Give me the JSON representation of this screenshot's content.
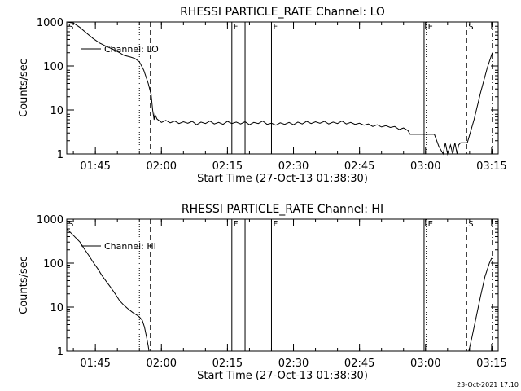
{
  "footer": {
    "timestamp": "23-Oct-2021 17:10"
  },
  "chart_data": [
    {
      "type": "line",
      "title": "RHESSI PARTICLE_RATE Channel: LO",
      "xlabel": "Start Time (27-Oct-13 01:38:30)",
      "ylabel": "Counts/sec",
      "y_scale": "log",
      "ylim": [
        1,
        1000
      ],
      "xlim": [
        "01:38:30",
        "03:16:30"
      ],
      "x_ticks": [
        "01:45",
        "02:00",
        "02:15",
        "02:30",
        "02:45",
        "03:00",
        "03:15"
      ],
      "y_ticks": [
        "1",
        "10",
        "100",
        "1000"
      ],
      "legend": {
        "placement": "top-left",
        "entries": [
          "Channel: LO"
        ]
      },
      "grid": false,
      "series": [
        {
          "name": "Channel: LO",
          "points": [
            [
              "01:38:30",
              1000
            ],
            [
              "01:40:00",
              950
            ],
            [
              "01:41:30",
              750
            ],
            [
              "01:43:00",
              560
            ],
            [
              "01:44:30",
              420
            ],
            [
              "01:46:00",
              330
            ],
            [
              "01:47:30",
              280
            ],
            [
              "01:49:00",
              240
            ],
            [
              "01:50:30",
              200
            ],
            [
              "01:51:30",
              175
            ],
            [
              "01:53:00",
              160
            ],
            [
              "01:54:00",
              148
            ],
            [
              "01:55:00",
              125
            ],
            [
              "01:56:00",
              80
            ],
            [
              "01:57:00",
              40
            ],
            [
              "01:57:40",
              22
            ],
            [
              "01:58:00",
              10
            ],
            [
              "01:58:20",
              6
            ],
            [
              "01:58:30",
              8
            ],
            [
              "01:59:00",
              6.2
            ],
            [
              "02:00:00",
              5.2
            ],
            [
              "02:01:00",
              5.8
            ],
            [
              "02:02:00",
              5.1
            ],
            [
              "02:03:00",
              5.6
            ],
            [
              "02:04:00",
              4.9
            ],
            [
              "02:05:00",
              5.4
            ],
            [
              "02:06:00",
              5.0
            ],
            [
              "02:07:00",
              5.5
            ],
            [
              "02:08:00",
              4.6
            ],
            [
              "02:09:00",
              5.3
            ],
            [
              "02:10:00",
              4.9
            ],
            [
              "02:11:00",
              5.6
            ],
            [
              "02:12:00",
              4.8
            ],
            [
              "02:13:00",
              5.2
            ],
            [
              "02:14:00",
              4.7
            ],
            [
              "02:15:00",
              5.5
            ],
            [
              "02:16:00",
              4.9
            ],
            [
              "02:17:00",
              5.3
            ],
            [
              "02:18:00",
              4.8
            ],
            [
              "02:19:00",
              5.4
            ],
            [
              "02:20:00",
              4.6
            ],
            [
              "02:21:00",
              5.2
            ],
            [
              "02:22:00",
              4.9
            ],
            [
              "02:23:00",
              5.6
            ],
            [
              "02:24:00",
              4.7
            ],
            [
              "02:25:00",
              5.0
            ],
            [
              "02:26:00",
              4.5
            ],
            [
              "02:27:00",
              5.1
            ],
            [
              "02:28:00",
              4.7
            ],
            [
              "02:29:00",
              5.2
            ],
            [
              "02:30:00",
              4.6
            ],
            [
              "02:31:00",
              5.3
            ],
            [
              "02:32:00",
              4.8
            ],
            [
              "02:33:00",
              5.5
            ],
            [
              "02:34:00",
              4.9
            ],
            [
              "02:35:00",
              5.4
            ],
            [
              "02:36:00",
              5.0
            ],
            [
              "02:37:00",
              5.5
            ],
            [
              "02:38:00",
              4.8
            ],
            [
              "02:39:00",
              5.3
            ],
            [
              "02:40:00",
              4.9
            ],
            [
              "02:41:00",
              5.6
            ],
            [
              "02:42:00",
              4.8
            ],
            [
              "02:43:00",
              5.2
            ],
            [
              "02:44:00",
              4.7
            ],
            [
              "02:45:00",
              5.0
            ],
            [
              "02:46:00",
              4.5
            ],
            [
              "02:47:00",
              4.8
            ],
            [
              "02:48:00",
              4.2
            ],
            [
              "02:49:00",
              4.6
            ],
            [
              "02:50:00",
              4.1
            ],
            [
              "02:51:00",
              4.4
            ],
            [
              "02:52:00",
              4.0
            ],
            [
              "02:53:00",
              4.2
            ],
            [
              "02:54:00",
              3.6
            ],
            [
              "02:55:00",
              3.9
            ],
            [
              "02:56:00",
              3.4
            ],
            [
              "02:56:30",
              2.8
            ],
            [
              "02:58:00",
              2.8
            ],
            [
              "03:00:00",
              2.8
            ],
            [
              "03:02:00",
              2.8
            ],
            [
              "03:03:00",
              1.5
            ],
            [
              "03:04:00",
              1.0
            ],
            [
              "03:04:30",
              1.8
            ],
            [
              "03:05:00",
              1.0
            ],
            [
              "03:05:40",
              1.6
            ],
            [
              "03:06:10",
              1.0
            ],
            [
              "03:06:40",
              1.8
            ],
            [
              "03:07:10",
              1.0
            ],
            [
              "03:07:30",
              1.6
            ],
            [
              "03:08:00",
              1.8
            ],
            [
              "03:09:30",
              1.8
            ],
            [
              "03:11:00",
              6
            ],
            [
              "03:12:30",
              25
            ],
            [
              "03:14:00",
              90
            ],
            [
              "03:15:10",
              200
            ]
          ]
        }
      ],
      "markers": [
        {
          "label": "S",
          "time": "01:38:30",
          "style": "none"
        },
        {
          "label": "",
          "time": "01:55:00",
          "style": "dotted"
        },
        {
          "label": "",
          "time": "01:57:30",
          "style": "dashed"
        },
        {
          "label": "F",
          "time": "02:16:00",
          "style": "solid"
        },
        {
          "label": "",
          "time": "02:19:00",
          "style": "solid"
        },
        {
          "label": "F",
          "time": "02:25:00",
          "style": "solid"
        },
        {
          "label": "",
          "time": "02:59:40",
          "style": "solid"
        },
        {
          "label": "E",
          "time": "03:00:10",
          "style": "dotted"
        },
        {
          "label": "S",
          "time": "03:09:20",
          "style": "dashed"
        },
        {
          "label": "",
          "time": "03:15:10",
          "style": "dashdot"
        }
      ]
    },
    {
      "type": "line",
      "title": "RHESSI PARTICLE_RATE Channel: HI",
      "xlabel": "Start Time (27-Oct-13 01:38:30)",
      "ylabel": "Counts/sec",
      "y_scale": "log",
      "ylim": [
        1,
        1000
      ],
      "xlim": [
        "01:38:30",
        "03:16:30"
      ],
      "x_ticks": [
        "01:45",
        "02:00",
        "02:15",
        "02:30",
        "02:45",
        "03:00",
        "03:15"
      ],
      "y_ticks": [
        "1",
        "10",
        "100",
        "1000"
      ],
      "legend": {
        "placement": "top-left",
        "entries": [
          "Channel: HI"
        ]
      },
      "grid": false,
      "series": [
        {
          "name": "Channel: HI",
          "points": [
            [
              "01:38:30",
              600
            ],
            [
              "01:39:30",
              480
            ],
            [
              "01:40:30",
              380
            ],
            [
              "01:41:30",
              300
            ],
            [
              "01:42:30",
              210
            ],
            [
              "01:43:30",
              150
            ],
            [
              "01:44:30",
              105
            ],
            [
              "01:45:30",
              75
            ],
            [
              "01:46:30",
              52
            ],
            [
              "01:47:30",
              38
            ],
            [
              "01:48:30",
              28
            ],
            [
              "01:49:30",
              20
            ],
            [
              "01:50:30",
              14
            ],
            [
              "01:51:30",
              11
            ],
            [
              "01:52:30",
              9
            ],
            [
              "01:53:30",
              7.5
            ],
            [
              "01:54:30",
              6.5
            ],
            [
              "01:55:00",
              6
            ],
            [
              "01:55:40",
              5
            ],
            [
              "01:56:10",
              3.5
            ],
            [
              "01:56:40",
              2
            ],
            [
              "01:57:00",
              1.3
            ],
            [
              "01:57:10",
              1
            ],
            [
              "03:09:50",
              1
            ],
            [
              "03:10:30",
              2
            ],
            [
              "03:11:30",
              6
            ],
            [
              "03:12:30",
              18
            ],
            [
              "03:13:30",
              50
            ],
            [
              "03:14:30",
              100
            ],
            [
              "03:15:00",
              130
            ]
          ]
        }
      ],
      "markers": [
        {
          "label": "S",
          "time": "01:38:30",
          "style": "none"
        },
        {
          "label": "",
          "time": "01:55:00",
          "style": "dotted"
        },
        {
          "label": "",
          "time": "01:57:30",
          "style": "dashed"
        },
        {
          "label": "F",
          "time": "02:16:00",
          "style": "solid"
        },
        {
          "label": "",
          "time": "02:19:00",
          "style": "solid"
        },
        {
          "label": "F",
          "time": "02:25:00",
          "style": "solid"
        },
        {
          "label": "",
          "time": "02:59:40",
          "style": "solid"
        },
        {
          "label": "E",
          "time": "03:00:10",
          "style": "dotted"
        },
        {
          "label": "S",
          "time": "03:09:20",
          "style": "dashed"
        },
        {
          "label": "",
          "time": "03:15:10",
          "style": "dashdot"
        }
      ]
    }
  ]
}
